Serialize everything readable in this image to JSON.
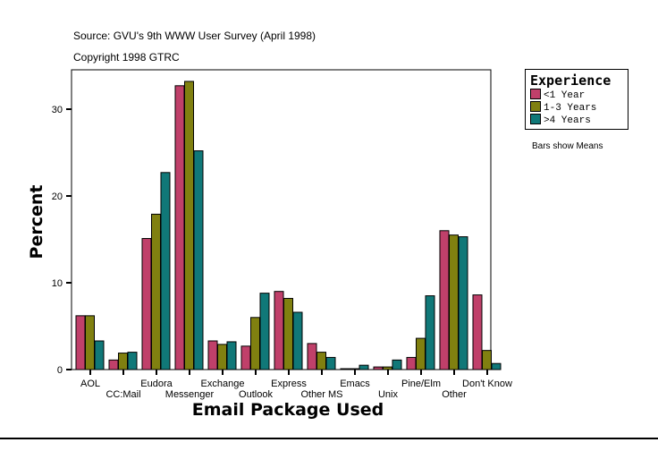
{
  "header": {
    "source": "Source: GVU's 9th WWW User Survey (April 1998)",
    "copyright": "Copyright 1998 GTRC"
  },
  "note": "Bars show Means",
  "chart_data": {
    "type": "bar",
    "xlabel": "Email Package Used",
    "ylabel": "Percent",
    "ylim": [
      0,
      34.5
    ],
    "yticks": [
      0,
      10,
      20,
      30
    ],
    "grid": false,
    "legend_title": "Experience",
    "legend_position": "right",
    "categories": [
      "AOL",
      "CC:Mail",
      "Eudora",
      "Messenger",
      "Exchange",
      "Outlook",
      "Express",
      "Other MS",
      "Emacs",
      "Unix",
      "Pine/Elm",
      "Other",
      "Don't Know"
    ],
    "series": [
      {
        "name": "<1 Year",
        "color": "#C0406A",
        "values": [
          6.2,
          1.1,
          15.1,
          32.7,
          3.3,
          2.7,
          9.0,
          3.0,
          0.1,
          0.3,
          1.4,
          16.0,
          8.6
        ]
      },
      {
        "name": "1-3 Years",
        "color": "#808010",
        "values": [
          6.2,
          1.9,
          17.9,
          33.2,
          2.9,
          6.0,
          8.2,
          2.0,
          0.1,
          0.3,
          3.6,
          15.5,
          2.2
        ]
      },
      {
        "name": ">4 Years",
        "color": "#107878",
        "values": [
          3.3,
          2.0,
          22.7,
          25.2,
          3.2,
          8.8,
          6.6,
          1.4,
          0.5,
          1.1,
          8.5,
          15.3,
          0.7
        ]
      }
    ]
  }
}
